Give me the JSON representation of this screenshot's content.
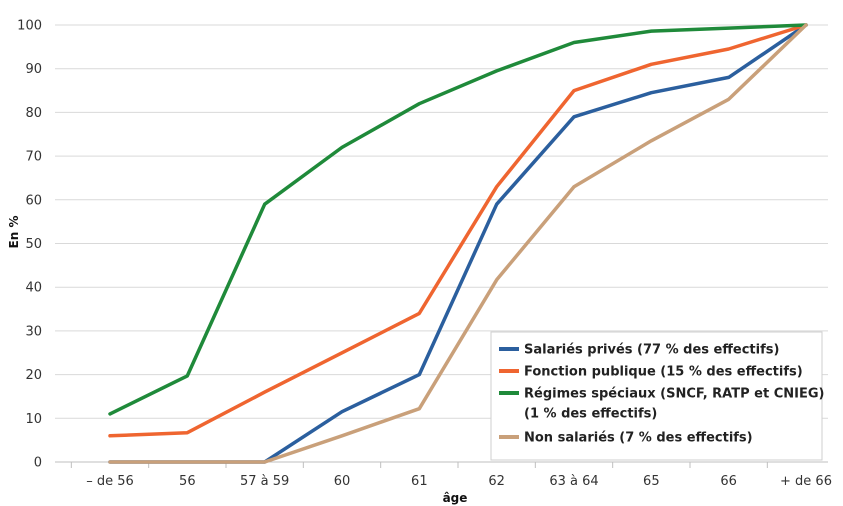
{
  "chart_data": {
    "type": "line",
    "categories": [
      "– de 56",
      "56",
      "57 à 59",
      "60",
      "61",
      "62",
      "63 à 64",
      "65",
      "66",
      "+ de 66"
    ],
    "xlabel": "âge",
    "ylabel": "En %",
    "ylim": [
      0,
      100
    ],
    "yticks": [
      0,
      10,
      20,
      30,
      40,
      50,
      60,
      70,
      80,
      90,
      100
    ],
    "grid": true,
    "legend_position": "bottom-right",
    "series": [
      {
        "name": "Salariés privés (77 % des effectifs)",
        "color": "#2b5f9e",
        "values": [
          0,
          0,
          0,
          11.5,
          20,
          59,
          79,
          84.5,
          88,
          100
        ]
      },
      {
        "name": "Fonction publique (15 % des effectifs)",
        "color": "#ef6530",
        "values": [
          6,
          6.7,
          16,
          25,
          34,
          63,
          85,
          91,
          94.5,
          100
        ]
      },
      {
        "name": "Régimes spéciaux (SNCF, RATP et CNIEG) (1 % des effectifs)",
        "legend_lines": [
          "Régimes spéciaux (SNCF, RATP et CNIEG)",
          "(1 % des effectifs)"
        ],
        "color": "#1f8a3a",
        "values": [
          11,
          19.7,
          59,
          72,
          82,
          89.5,
          96,
          98.6,
          99.3,
          100
        ]
      },
      {
        "name": "Non salariés (7 % des effectifs)",
        "color": "#c9a07a",
        "values": [
          0,
          0,
          0,
          6,
          12.2,
          41.7,
          63,
          73.5,
          83,
          100
        ]
      }
    ]
  }
}
